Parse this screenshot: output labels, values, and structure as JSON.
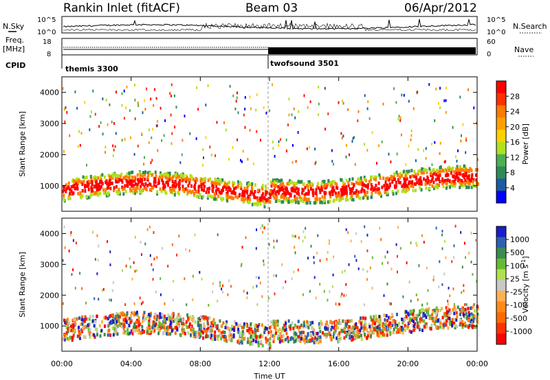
{
  "header": {
    "title": "Rankin Inlet (fitACF)",
    "beam": "Beam 03",
    "date": "06/Apr/2012"
  },
  "colors": {
    "frame": "#000000",
    "divider": "#999999"
  },
  "chart_data": [
    {
      "type": "line",
      "name": "noise-panel",
      "left_label": "N.Sky",
      "right_label": "N.Search",
      "left_ticks": [
        "10^5",
        "10^0"
      ],
      "right_ticks": [
        "10^5",
        "10^0"
      ],
      "scale": "log"
    },
    {
      "type": "line",
      "name": "freq-panel",
      "left_label_1": "Freq.",
      "left_label_2": "[MHz]",
      "right_label": "Nave",
      "left_ticks": [
        "18",
        "8"
      ],
      "right_ticks": [
        "60",
        "0"
      ],
      "cpid_label": "CPID",
      "cpid_segments": [
        {
          "label": "themis 3300",
          "start_hour": 0
        },
        {
          "label": "twofsound 3501",
          "start_hour": 12
        }
      ]
    },
    {
      "type": "heatmap",
      "name": "power",
      "ylabel": "Slant Range [km]",
      "yticks": [
        "4000",
        "3000",
        "2000",
        "1000"
      ],
      "ylim": [
        180,
        4500
      ],
      "cbar_label": "Power [dB]",
      "cbar_ticks": [
        "28",
        "24",
        "20",
        "16",
        "12",
        "8",
        "4"
      ],
      "cbar_colors": [
        "#ff0000",
        "#ff3000",
        "#ff7a00",
        "#ffa000",
        "#ffd000",
        "#b0e020",
        "#4caf50",
        "#2e8b57",
        "#1e5aa0",
        "#0000ff"
      ]
    },
    {
      "type": "heatmap",
      "name": "velocity",
      "ylabel": "Slant Range [km]",
      "yticks": [
        "4000",
        "3000",
        "2000",
        "1000"
      ],
      "ylim": [
        180,
        4500
      ],
      "cbar_label": "Velocity [m s",
      "cbar_sup": "-1",
      "cbar_label_end": "]",
      "cbar_ticks": [
        "1000",
        "500",
        "100",
        "25",
        "-25",
        "-100",
        "-500",
        "-1000"
      ],
      "cbar_colors": [
        "#1c1cc8",
        "#2f5fb0",
        "#3c8a50",
        "#66bb33",
        "#b0e050",
        "#c8c8c8",
        "#ffb050",
        "#ff8a1a",
        "#ff6a00",
        "#ff3000",
        "#ff0000"
      ]
    }
  ],
  "xaxis": {
    "label": "Time UT",
    "ticks": [
      "00:00",
      "04:00",
      "08:00",
      "12:00",
      "16:00",
      "20:00",
      "00:00"
    ],
    "range_hours": [
      0,
      24
    ]
  }
}
